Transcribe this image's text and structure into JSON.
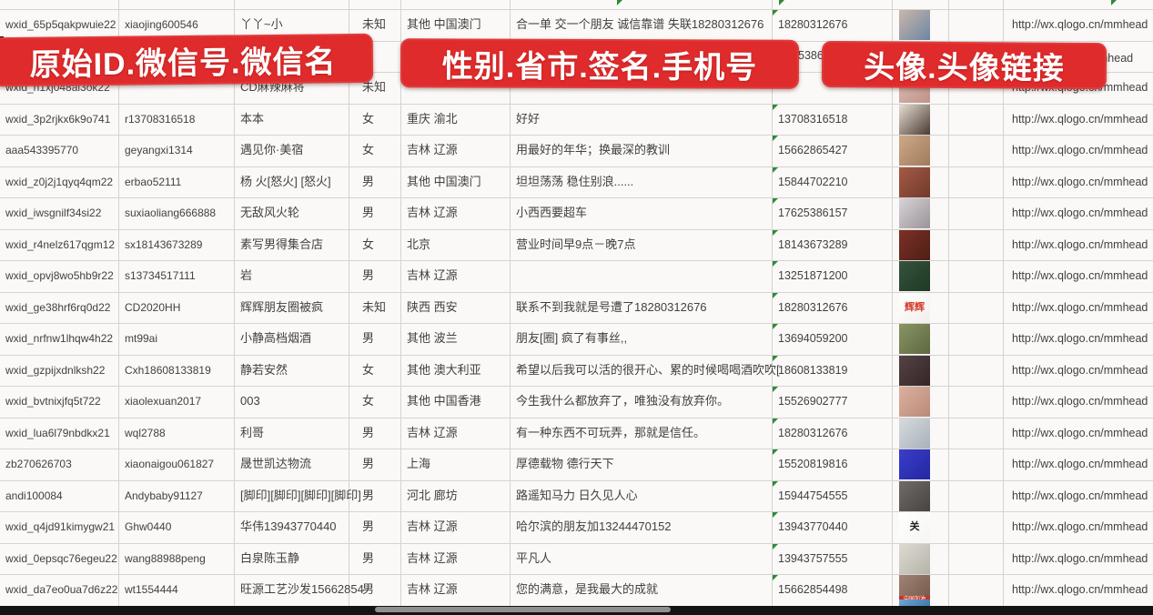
{
  "banners": [
    {
      "text": "原始ID.微信号.微信名"
    },
    {
      "text": "性别.省市.签名.手机号"
    },
    {
      "text": "头像.头像链接"
    }
  ],
  "columns": [
    "原始ID",
    "微信号",
    "微信名",
    "性别",
    "省市",
    "签名",
    "手机号",
    "头像",
    "头像链接"
  ],
  "colors": {
    "banner_red": "#df2b2b",
    "marker_green": "#2f8b34",
    "grid": "#d2d2d2",
    "bottom_bar": "#141414"
  },
  "row2_fragments": {
    "phone": "5386",
    "link": "/mmhead"
  },
  "rows": [
    {
      "id": "wxid_65p5qakpwuie22",
      "wechat_id": "xiaojing600546",
      "name": "丫丫~小",
      "gender": "未知",
      "region": "其他 中国澳门",
      "signature": "合一单 交一个朋友 诚信靠谱 失联18280312676",
      "phone": "18280312676",
      "link": "http://wx.qlogo.cn/mmhead",
      "avatar": {
        "desc": "woman-selfie-photo",
        "c1": "#c9b6ab",
        "c2": "#6d86a4"
      }
    },
    {
      "id": "",
      "wechat_id": "",
      "name": "",
      "gender": "",
      "region": "",
      "signature": "",
      "phone": "",
      "link": "",
      "avatar": {
        "desc": "photo-hidden-under-banner",
        "c1": "#aebdc9",
        "c2": "#8aa0b2"
      }
    },
    {
      "id": "wxid_h1xj048al3ok22",
      "wechat_id": "",
      "name": "CD麻辣麻将",
      "gender": "未知",
      "region": "",
      "signature": "",
      "phone": "",
      "link": "http://wx.qlogo.cn/mmhead",
      "avatar": {
        "desc": "woman-photo",
        "c1": "#d9bfb4",
        "c2": "#c09288"
      }
    },
    {
      "id": "wxid_3p2rjkx6k9o741",
      "wechat_id": "r13708316518",
      "name": "本本",
      "gender": "女",
      "region": "重庆 渝北",
      "signature": "好好",
      "phone": "13708316518",
      "link": "http://wx.qlogo.cn/mmhead",
      "avatar": {
        "desc": "dark-haired-woman",
        "c1": "#e6ded2",
        "c2": "#4a3a34"
      }
    },
    {
      "id": "aaa543395770",
      "wechat_id": "geyangxi1314",
      "name": "遇见你·美宿",
      "gender": "女",
      "region": "吉林 辽源",
      "signature": "用最好的年华；换最深的教训",
      "phone": "15662865427",
      "link": "http://wx.qlogo.cn/mmhead",
      "avatar": {
        "desc": "warm-portrait",
        "c1": "#cdaa88",
        "c2": "#a07a5c"
      }
    },
    {
      "id": "wxid_z0j2j1qyq4qm22",
      "wechat_id": "erbao52111",
      "name": "杨 火[怒火] [怒火]",
      "gender": "男",
      "region": "其他 中国澳门",
      "signature": "坦坦荡荡 稳住别浪......",
      "phone": "15844702210",
      "link": "http://wx.qlogo.cn/mmhead",
      "avatar": {
        "desc": "group-photo-red",
        "c1": "#a65a46",
        "c2": "#703a2c"
      }
    },
    {
      "id": "wxid_iwsgnilf34si22",
      "wechat_id": "suxiaoliang666888",
      "name": "无敌风火轮",
      "gender": "男",
      "region": "吉林 辽源",
      "signature": "小西西要超车",
      "phone": "17625386157",
      "link": "http://wx.qlogo.cn/mmhead",
      "avatar": {
        "desc": "person-in-car",
        "c1": "#d8d3d6",
        "c2": "#9a9499"
      }
    },
    {
      "id": "wxid_r4nelz617qgm12",
      "wechat_id": "sx18143673289",
      "name": "素写男得集合店",
      "gender": "女",
      "region": "北京",
      "signature": "营业时间早9点－晚7点",
      "phone": "18143673289",
      "link": "http://wx.qlogo.cn/mmhead",
      "avatar": {
        "desc": "storefront-dark-red",
        "c1": "#7c3126",
        "c2": "#4e1e16"
      }
    },
    {
      "id": "wxid_opvj8wo5hb9r22",
      "wechat_id": "s13734517111",
      "name": "岩",
      "gender": "男",
      "region": "吉林 辽源",
      "signature": "",
      "phone": "13251871200",
      "link": "http://wx.qlogo.cn/mmhead",
      "avatar": {
        "desc": "dark-green-poster",
        "c1": "#35543c",
        "c2": "#1e3826"
      }
    },
    {
      "id": "wxid_ge38hrf6rq0d22",
      "wechat_id": "CD2020HH",
      "name": "辉辉朋友圈被疯",
      "gender": "未知",
      "region": "陕西 西安",
      "signature": "联系不到我就是号遭了18280312676",
      "phone": "18280312676",
      "link": "http://wx.qlogo.cn/mmhead",
      "avatar": {
        "desc": "white-with-red-text",
        "c1": "#ffffff",
        "c2": "#f1efec",
        "label": "辉辉",
        "label_color": "#d43a2a"
      }
    },
    {
      "id": "wxid_nrfnw1lhqw4h22",
      "wechat_id": "mt99ai",
      "name": "小静高档烟酒",
      "gender": "男",
      "region": "其他 波兰",
      "signature": "朋友[圈] 疯了有事丝,,",
      "phone": "13694059200",
      "link": "http://wx.qlogo.cn/mmhead",
      "avatar": {
        "desc": "woman-sunglasses",
        "c1": "#8a9465",
        "c2": "#5c6840"
      }
    },
    {
      "id": "wxid_gzpijxdnlksh22",
      "wechat_id": "Cxh18608133819",
      "name": "静若安然",
      "gender": "女",
      "region": "其他 澳大利亚",
      "signature": "希望以后我可以活的很开心、累的时候喝喝酒吹吹[",
      "phone": "18608133819",
      "link": "http://wx.qlogo.cn/mmhead",
      "avatar": {
        "desc": "dark-portrait",
        "c1": "#564244",
        "c2": "#332628"
      }
    },
    {
      "id": "wxid_bvtnixjfq5t722",
      "wechat_id": "xiaolexuan2017",
      "name": "003",
      "gender": "女",
      "region": "其他 中国香港",
      "signature": "今生我什么都放弃了，唯独没有放弃你。",
      "phone": "15526902777",
      "link": "http://wx.qlogo.cn/mmhead",
      "avatar": {
        "desc": "closeup-portrait",
        "c1": "#dcb0a0",
        "c2": "#b98a78"
      }
    },
    {
      "id": "wxid_lua6l79nbdkx21",
      "wechat_id": "wql2788",
      "name": "利哥",
      "gender": "男",
      "region": "吉林 辽源",
      "signature": "有一种东西不可玩弄，那就是信任。",
      "phone": "18280312676",
      "link": "http://wx.qlogo.cn/mmhead",
      "avatar": {
        "desc": "person-in-snow",
        "c1": "#d6dade",
        "c2": "#a8b2ba"
      }
    },
    {
      "id": "zb270626703",
      "wechat_id": "xiaonaigou061827",
      "name": "晟世凯达物流",
      "gender": "男",
      "region": "上海",
      "signature": "厚德载物 德行天下",
      "phone": "15520819816",
      "link": "http://wx.qlogo.cn/mmhead",
      "avatar": {
        "desc": "blue-qr-code",
        "c1": "#3a3ecb",
        "c2": "#23279e"
      }
    },
    {
      "id": "andi100084",
      "wechat_id": "Andybaby91127",
      "name": "[脚印][脚印][脚印][脚印]",
      "gender": "男",
      "region": "河北 廊坊",
      "signature": "路遥知马力 日久见人心",
      "phone": "15944754555",
      "link": "http://wx.qlogo.cn/mmhead",
      "avatar": {
        "desc": "dark-figure-photo",
        "c1": "#716c68",
        "c2": "#474340"
      }
    },
    {
      "id": "wxid_q4jd91kimygw21",
      "wechat_id": "Ghw0440",
      "name": "华伟13943770440",
      "gender": "男",
      "region": "吉林 辽源",
      "signature": "哈尔滨的朋友加13244470152",
      "phone": "13943770440",
      "link": "http://wx.qlogo.cn/mmhead",
      "avatar": {
        "desc": "calligraphy-guan",
        "c1": "#ffffff",
        "c2": "#f5f5f2",
        "label": "关",
        "label_color": "#1c1c1c"
      }
    },
    {
      "id": "wxid_0epsqc76egeu22",
      "wechat_id": "wang88988peng",
      "name": "白泉陈玉静",
      "gender": "男",
      "region": "吉林 辽源",
      "signature": "平凡人",
      "phone": "13943757555",
      "link": "http://wx.qlogo.cn/mmhead",
      "avatar": {
        "desc": "beach-person",
        "c1": "#dddad2",
        "c2": "#b6b3aa"
      }
    },
    {
      "id": "wxid_da7eo0ua7d6z22",
      "wechat_id": "wt1554444",
      "name": "旺源工艺沙发15662854",
      "gender": "男",
      "region": "吉林 辽源",
      "signature": "您的满意，是我最大的成就",
      "phone": "15662854498",
      "link": "http://wx.qlogo.cn/mmhead",
      "avatar": {
        "desc": "photo-with-red-banner",
        "c1": "#a08374",
        "c2": "#705648",
        "strip_text": "中国加油",
        "strip_bg": "#c5352a"
      }
    }
  ],
  "partial_row20_avatar": {
    "desc": "cartoon-boy",
    "c1": "#6fa8d4",
    "c2": "#3f78a8"
  }
}
